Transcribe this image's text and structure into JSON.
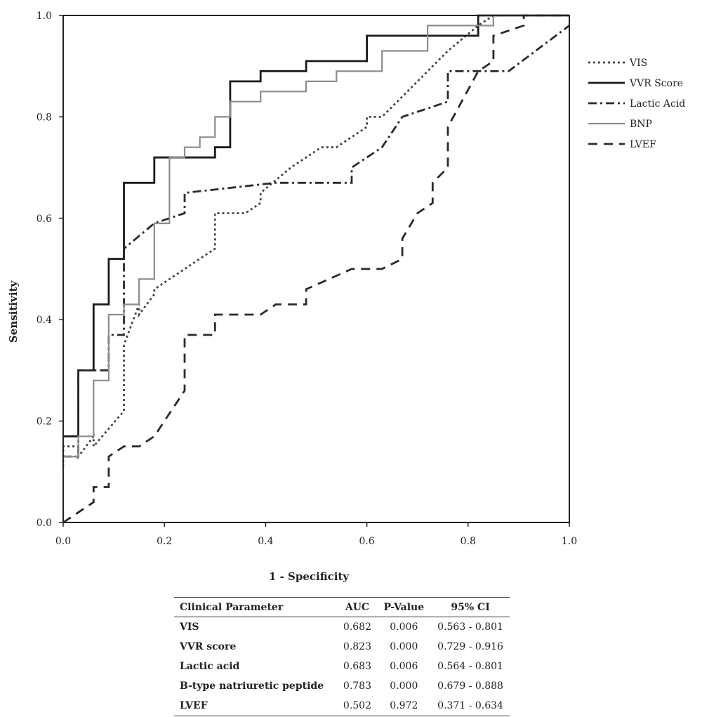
{
  "chart_data": {
    "type": "line",
    "xlabel": "1 - Specificity",
    "ylabel": "Sensitivity",
    "xlim": [
      0,
      1
    ],
    "ylim": [
      0,
      1
    ],
    "xticks": [
      "0.0",
      "0.2",
      "0.4",
      "0.6",
      "0.8",
      "1.0"
    ],
    "yticks": [
      "0.0",
      "0.2",
      "0.4",
      "0.6",
      "0.8",
      "1.0"
    ],
    "legend_position": "right",
    "series": [
      {
        "name": "VIS",
        "color": "#444444",
        "dash": "dotted",
        "x": [
          0.0,
          0.0,
          0.03,
          0.03,
          0.06,
          0.06,
          0.12,
          0.12,
          0.15,
          0.15,
          0.18,
          0.18,
          0.24,
          0.3,
          0.3,
          0.36,
          0.39,
          0.39,
          0.45,
          0.51,
          0.54,
          0.6,
          0.6,
          0.63,
          0.7,
          0.76,
          0.82,
          0.85,
          0.85,
          1.0
        ],
        "y": [
          0.11,
          0.15,
          0.15,
          0.13,
          0.17,
          0.15,
          0.22,
          0.35,
          0.43,
          0.41,
          0.45,
          0.46,
          0.5,
          0.54,
          0.61,
          0.61,
          0.63,
          0.65,
          0.7,
          0.74,
          0.74,
          0.78,
          0.8,
          0.8,
          0.87,
          0.93,
          0.98,
          1.0,
          1.0,
          1.0
        ]
      },
      {
        "name": "VVR Score",
        "color": "#1a1a1a",
        "dash": "solid",
        "x": [
          0.0,
          0.03,
          0.03,
          0.06,
          0.06,
          0.09,
          0.09,
          0.12,
          0.12,
          0.18,
          0.18,
          0.3,
          0.3,
          0.33,
          0.33,
          0.39,
          0.39,
          0.48,
          0.48,
          0.6,
          0.6,
          0.82,
          0.82,
          1.0
        ],
        "y": [
          0.17,
          0.17,
          0.3,
          0.3,
          0.43,
          0.43,
          0.52,
          0.52,
          0.67,
          0.67,
          0.72,
          0.72,
          0.74,
          0.74,
          0.87,
          0.87,
          0.89,
          0.89,
          0.91,
          0.91,
          0.96,
          0.96,
          1.0,
          1.0
        ]
      },
      {
        "name": "Lactic Acid",
        "color": "#2a2a2a",
        "dash": "dashdot",
        "x": [
          0.0,
          0.03,
          0.03,
          0.06,
          0.06,
          0.09,
          0.09,
          0.12,
          0.12,
          0.18,
          0.24,
          0.24,
          0.42,
          0.57,
          0.57,
          0.63,
          0.67,
          0.76,
          0.76,
          0.88,
          1.0
        ],
        "y": [
          0.13,
          0.13,
          0.3,
          0.3,
          0.3,
          0.3,
          0.37,
          0.37,
          0.54,
          0.59,
          0.61,
          0.65,
          0.67,
          0.67,
          0.7,
          0.74,
          0.8,
          0.83,
          0.89,
          0.89,
          0.98
        ]
      },
      {
        "name": "BNP",
        "color": "#8c8c8c",
        "dash": "solid",
        "x": [
          0.0,
          0.03,
          0.03,
          0.06,
          0.06,
          0.09,
          0.09,
          0.12,
          0.12,
          0.15,
          0.15,
          0.18,
          0.18,
          0.21,
          0.21,
          0.24,
          0.24,
          0.27,
          0.27,
          0.3,
          0.3,
          0.33,
          0.33,
          0.39,
          0.39,
          0.48,
          0.48,
          0.54,
          0.54,
          0.63,
          0.63,
          0.72,
          0.72,
          0.82,
          0.82,
          0.85,
          0.85,
          1.0
        ],
        "y": [
          0.13,
          0.13,
          0.17,
          0.17,
          0.28,
          0.28,
          0.41,
          0.41,
          0.43,
          0.43,
          0.48,
          0.48,
          0.59,
          0.59,
          0.72,
          0.72,
          0.74,
          0.74,
          0.76,
          0.76,
          0.8,
          0.8,
          0.83,
          0.83,
          0.85,
          0.85,
          0.87,
          0.87,
          0.89,
          0.89,
          0.93,
          0.93,
          0.98,
          0.98,
          0.98,
          0.98,
          1.0,
          1.0
        ]
      },
      {
        "name": "LVEF",
        "color": "#2a2a2a",
        "dash": "dashed",
        "x": [
          0.0,
          0.06,
          0.06,
          0.09,
          0.09,
          0.12,
          0.15,
          0.18,
          0.24,
          0.24,
          0.3,
          0.3,
          0.39,
          0.42,
          0.48,
          0.48,
          0.57,
          0.63,
          0.67,
          0.67,
          0.7,
          0.73,
          0.73,
          0.76,
          0.76,
          0.82,
          0.85,
          0.85,
          0.91,
          0.91,
          1.0
        ],
        "y": [
          0.0,
          0.04,
          0.07,
          0.07,
          0.13,
          0.15,
          0.15,
          0.17,
          0.26,
          0.37,
          0.37,
          0.41,
          0.41,
          0.43,
          0.43,
          0.46,
          0.5,
          0.5,
          0.52,
          0.56,
          0.61,
          0.63,
          0.67,
          0.7,
          0.78,
          0.89,
          0.91,
          0.96,
          0.98,
          1.0,
          1.0
        ]
      }
    ]
  },
  "table": {
    "headers": [
      "Clinical Parameter",
      "AUC",
      "P-Value",
      "95% CI"
    ],
    "rows": [
      {
        "param": "VIS",
        "auc": "0.682",
        "p": "0.006",
        "ci": "0.563  -  0.801"
      },
      {
        "param": "VVR score",
        "auc": "0.823",
        "p": "0.000",
        "ci": "0.729  -  0.916"
      },
      {
        "param": "Lactic acid",
        "auc": "0.683",
        "p": "0.006",
        "ci": "0.564  -  0.801"
      },
      {
        "param": "B-type natriuretic peptide",
        "auc": "0.783",
        "p": "0.000",
        "ci": "0.679  -  0.888"
      },
      {
        "param": "LVEF",
        "auc": "0.502",
        "p": "0.972",
        "ci": "0.371  -  0.634"
      }
    ]
  }
}
